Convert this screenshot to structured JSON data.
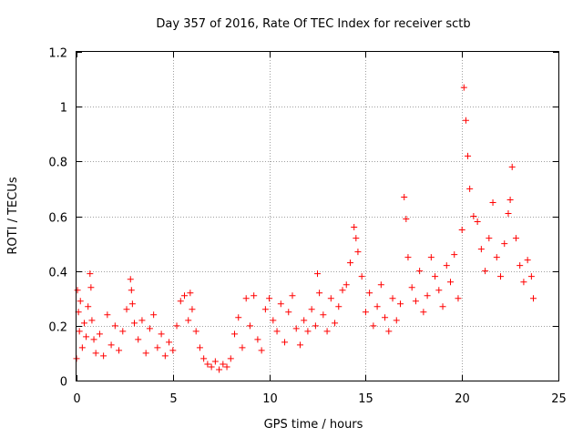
{
  "chart_data": {
    "type": "scatter",
    "title": "Day 357 of 2016, Rate Of TEC Index for receiver sctb",
    "xlabel": "GPS time / hours",
    "ylabel": "ROTI / TECUs",
    "xlim": [
      0,
      25
    ],
    "ylim": [
      0,
      1.2
    ],
    "grid": true,
    "xticks": [
      0,
      5,
      10,
      15,
      20,
      25
    ],
    "xtick_labels": [
      "0",
      "5",
      "10",
      "15",
      "20",
      "25"
    ],
    "yticks": [
      0,
      0.2,
      0.4,
      0.6,
      0.8,
      1.0,
      1.2
    ],
    "ytick_labels": [
      "0",
      "0.2",
      "0.4",
      "0.6",
      "0.8",
      "1",
      "1.2"
    ],
    "marker": "+",
    "color": "#ff0000",
    "series": [
      {
        "name": "ROTI",
        "x": [
          0.0,
          0.05,
          0.1,
          0.15,
          0.2,
          0.3,
          0.4,
          0.5,
          0.6,
          0.7,
          0.75,
          0.8,
          0.9,
          1.0,
          1.2,
          1.4,
          1.6,
          1.8,
          2.0,
          2.2,
          2.4,
          2.6,
          2.8,
          2.85,
          2.9,
          3.0,
          3.2,
          3.4,
          3.6,
          3.8,
          4.0,
          4.2,
          4.4,
          4.6,
          4.8,
          5.0,
          5.2,
          5.4,
          5.6,
          5.8,
          5.9,
          6.0,
          6.2,
          6.4,
          6.6,
          6.8,
          7.0,
          7.2,
          7.4,
          7.6,
          7.8,
          8.0,
          8.2,
          8.4,
          8.6,
          8.8,
          9.0,
          9.2,
          9.4,
          9.6,
          9.8,
          10.0,
          10.2,
          10.4,
          10.6,
          10.8,
          11.0,
          11.2,
          11.4,
          11.6,
          11.8,
          12.0,
          12.2,
          12.4,
          12.5,
          12.6,
          12.8,
          13.0,
          13.2,
          13.4,
          13.6,
          13.8,
          14.0,
          14.2,
          14.4,
          14.5,
          14.6,
          14.8,
          15.0,
          15.2,
          15.4,
          15.6,
          15.8,
          16.0,
          16.2,
          16.4,
          16.6,
          16.8,
          17.0,
          17.1,
          17.2,
          17.4,
          17.6,
          17.8,
          18.0,
          18.2,
          18.4,
          18.6,
          18.8,
          19.0,
          19.2,
          19.4,
          19.6,
          19.8,
          20.0,
          20.1,
          20.2,
          20.3,
          20.4,
          20.6,
          20.8,
          21.0,
          21.2,
          21.4,
          21.6,
          21.8,
          22.0,
          22.2,
          22.4,
          22.5,
          22.6,
          22.8,
          23.0,
          23.2,
          23.4,
          23.6,
          23.7
        ],
        "y": [
          0.08,
          0.33,
          0.25,
          0.18,
          0.29,
          0.12,
          0.21,
          0.16,
          0.27,
          0.39,
          0.34,
          0.22,
          0.15,
          0.1,
          0.17,
          0.09,
          0.24,
          0.13,
          0.2,
          0.11,
          0.18,
          0.26,
          0.37,
          0.33,
          0.28,
          0.21,
          0.15,
          0.22,
          0.1,
          0.19,
          0.24,
          0.12,
          0.17,
          0.09,
          0.14,
          0.11,
          0.2,
          0.29,
          0.31,
          0.22,
          0.32,
          0.26,
          0.18,
          0.12,
          0.08,
          0.06,
          0.05,
          0.07,
          0.04,
          0.06,
          0.05,
          0.08,
          0.17,
          0.23,
          0.12,
          0.3,
          0.2,
          0.31,
          0.15,
          0.11,
          0.26,
          0.3,
          0.22,
          0.18,
          0.28,
          0.14,
          0.25,
          0.31,
          0.19,
          0.13,
          0.22,
          0.18,
          0.26,
          0.2,
          0.39,
          0.32,
          0.24,
          0.18,
          0.3,
          0.21,
          0.27,
          0.33,
          0.35,
          0.43,
          0.56,
          0.52,
          0.47,
          0.38,
          0.25,
          0.32,
          0.2,
          0.27,
          0.35,
          0.23,
          0.18,
          0.3,
          0.22,
          0.28,
          0.67,
          0.59,
          0.45,
          0.34,
          0.29,
          0.4,
          0.25,
          0.31,
          0.45,
          0.38,
          0.33,
          0.27,
          0.42,
          0.36,
          0.46,
          0.3,
          0.55,
          1.07,
          0.95,
          0.82,
          0.7,
          0.6,
          0.58,
          0.48,
          0.4,
          0.52,
          0.65,
          0.45,
          0.38,
          0.5,
          0.61,
          0.66,
          0.78,
          0.52,
          0.42,
          0.36,
          0.44,
          0.38,
          0.3
        ]
      }
    ]
  }
}
